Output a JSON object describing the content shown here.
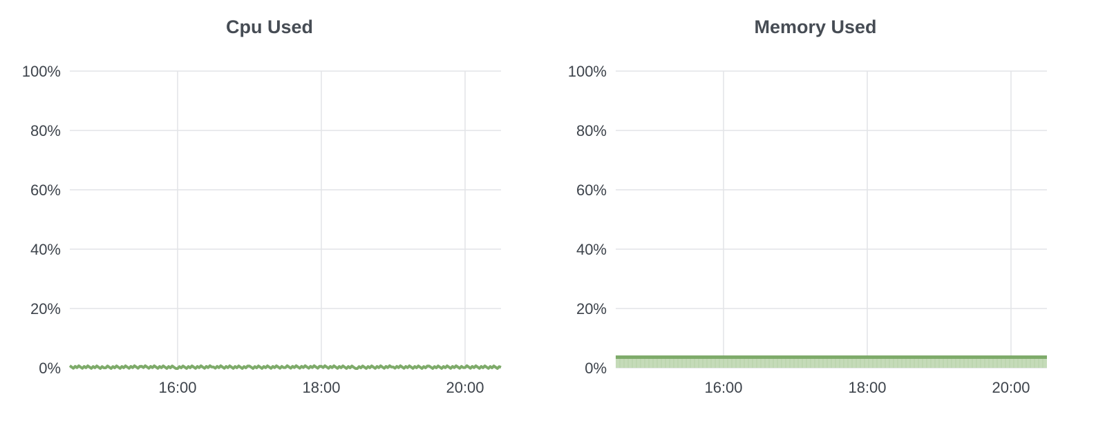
{
  "chart_data": [
    {
      "type": "line",
      "title": "Cpu Used",
      "xlabel": "",
      "ylabel": "",
      "x_range": [
        "14:30",
        "20:30"
      ],
      "ylim": [
        0,
        100
      ],
      "y_ticks": [
        "0%",
        "20%",
        "40%",
        "60%",
        "80%",
        "100%"
      ],
      "x_ticks": [
        "16:00",
        "18:00",
        "20:00"
      ],
      "grid": true,
      "series": [
        {
          "color": "#7eab6a",
          "x": [
            "14:30",
            "15:00",
            "15:30",
            "16:00",
            "16:30",
            "17:00",
            "17:30",
            "18:00",
            "18:30",
            "19:00",
            "19:30",
            "20:00",
            "20:30"
          ],
          "values": [
            0.3,
            0.2,
            0.3,
            0.2,
            0.3,
            0.2,
            0.3,
            0.3,
            0.2,
            0.3,
            0.2,
            0.3,
            0.2
          ]
        }
      ]
    },
    {
      "type": "area",
      "title": "Memory Used",
      "xlabel": "",
      "ylabel": "",
      "x_range": [
        "14:30",
        "20:30"
      ],
      "ylim": [
        0,
        100
      ],
      "y_ticks": [
        "0%",
        "20%",
        "40%",
        "60%",
        "80%",
        "100%"
      ],
      "x_ticks": [
        "16:00",
        "18:00",
        "20:00"
      ],
      "grid": true,
      "series": [
        {
          "color": "#7eab6a",
          "fill": "#c5dbb9",
          "x": [
            "14:30",
            "15:00",
            "15:30",
            "16:00",
            "16:30",
            "17:00",
            "17:30",
            "18:00",
            "18:30",
            "19:00",
            "19:30",
            "20:00",
            "20:30"
          ],
          "values": [
            3.6,
            3.6,
            3.6,
            3.6,
            3.6,
            3.6,
            3.6,
            3.6,
            3.6,
            3.6,
            3.6,
            3.6,
            3.6
          ]
        }
      ]
    }
  ]
}
